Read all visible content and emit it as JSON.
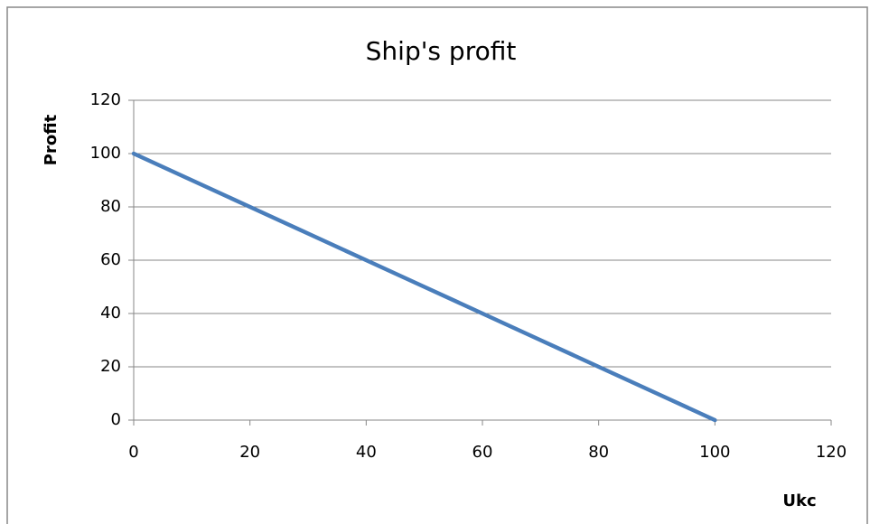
{
  "chart_data": {
    "type": "line",
    "title": "Ship's profit",
    "x_label": "Ukc",
    "y_label": "Profit",
    "x": [
      0,
      10,
      20,
      30,
      40,
      50,
      60,
      70,
      80,
      90,
      100
    ],
    "series": [
      {
        "name": "Profit",
        "color": "#4a7ebb",
        "values": [
          100,
          90,
          80,
          70,
          60,
          50,
          40,
          30,
          20,
          10,
          0
        ]
      }
    ],
    "xlim": [
      0,
      120
    ],
    "xticks": [
      0,
      20,
      40,
      60,
      80,
      100,
      120
    ],
    "ylim": [
      0,
      120
    ],
    "yticks": [
      0,
      20,
      40,
      60,
      80,
      100,
      120
    ],
    "grid": true
  }
}
